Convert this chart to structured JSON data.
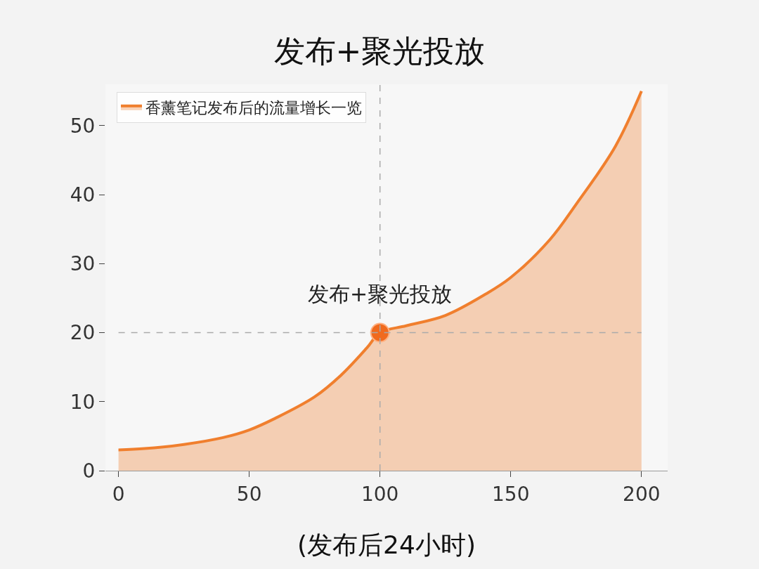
{
  "chart_data": {
    "type": "area",
    "title": "发布+聚光投放",
    "xlabel": "(发布后24小时)",
    "x": [
      0,
      10,
      25,
      40,
      50,
      60,
      75,
      85,
      95,
      100,
      110,
      125,
      140,
      150,
      165,
      175,
      190,
      200
    ],
    "series": [
      {
        "name": "香薰笔记发布后的流量增长一览",
        "color": "#f07f2e",
        "values": [
          3,
          3.2,
          3.8,
          4.8,
          5.9,
          7.6,
          10.7,
          13.8,
          17.8,
          20,
          21,
          22.5,
          25.5,
          28,
          33.5,
          38.6,
          47,
          55
        ]
      },
      {
        "type": "scatter",
        "color": "#f06a1e",
        "x": [
          100
        ],
        "values": [
          20
        ],
        "marker": "circle"
      }
    ],
    "xlim": [
      -5,
      210
    ],
    "xticks": [
      0,
      50,
      100,
      150,
      200
    ],
    "ylim": [
      0,
      56
    ],
    "yticks": [
      0,
      10,
      20,
      30,
      40,
      50
    ],
    "ref_lines": [
      {
        "axis": "y",
        "value": 20,
        "color": "#aaaaaa",
        "line_style": "dashed"
      },
      {
        "axis": "x",
        "value": 100,
        "color": "#aaaaaa",
        "line_style": "dashed"
      }
    ],
    "annotations": [
      {
        "text": "发布+聚光投放",
        "x": 100,
        "y": 20
      }
    ],
    "grid": false,
    "legend": "top left",
    "marker": "none",
    "line_style": "solid"
  }
}
